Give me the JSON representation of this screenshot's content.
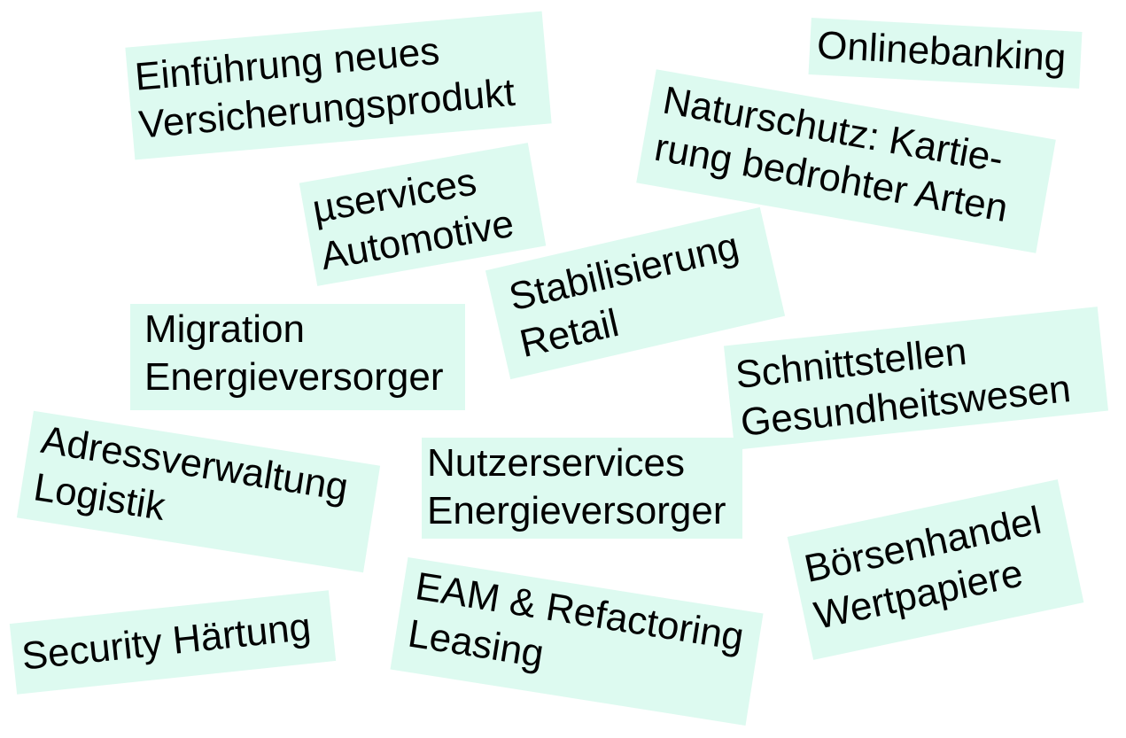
{
  "background_color": "#ffffff",
  "card_color": "#ddfaf0",
  "cards": [
    {
      "name": "card-insurance",
      "lines": [
        "Einführung neues",
        "Versicherungsprodukt"
      ]
    },
    {
      "name": "card-onlinebanking",
      "lines": [
        "Onlinebanking"
      ]
    },
    {
      "name": "card-nature",
      "lines": [
        "Naturschutz: Kartie-",
        "rung bedrohter Arten"
      ]
    },
    {
      "name": "card-uservices",
      "lines": [
        "µservices",
        "Automotive"
      ]
    },
    {
      "name": "card-stabilisierung",
      "lines": [
        "Stabilisierung",
        "Retail"
      ]
    },
    {
      "name": "card-migration",
      "lines": [
        "Migration",
        "Energieversorger"
      ]
    },
    {
      "name": "card-schnittstellen",
      "lines": [
        "Schnittstellen",
        "Gesundheitswesen"
      ]
    },
    {
      "name": "card-adressverwaltung",
      "lines": [
        "Adressverwaltung",
        "Logistik"
      ]
    },
    {
      "name": "card-nutzerservices",
      "lines": [
        "Nutzerservices",
        "Energieversorger"
      ]
    },
    {
      "name": "card-boersenhandel",
      "lines": [
        "Börsenhandel",
        "Wertpapiere"
      ]
    },
    {
      "name": "card-security",
      "lines": [
        "Security Härtung"
      ]
    },
    {
      "name": "card-eam",
      "lines": [
        "EAM & Refactoring",
        "Leasing"
      ]
    }
  ]
}
